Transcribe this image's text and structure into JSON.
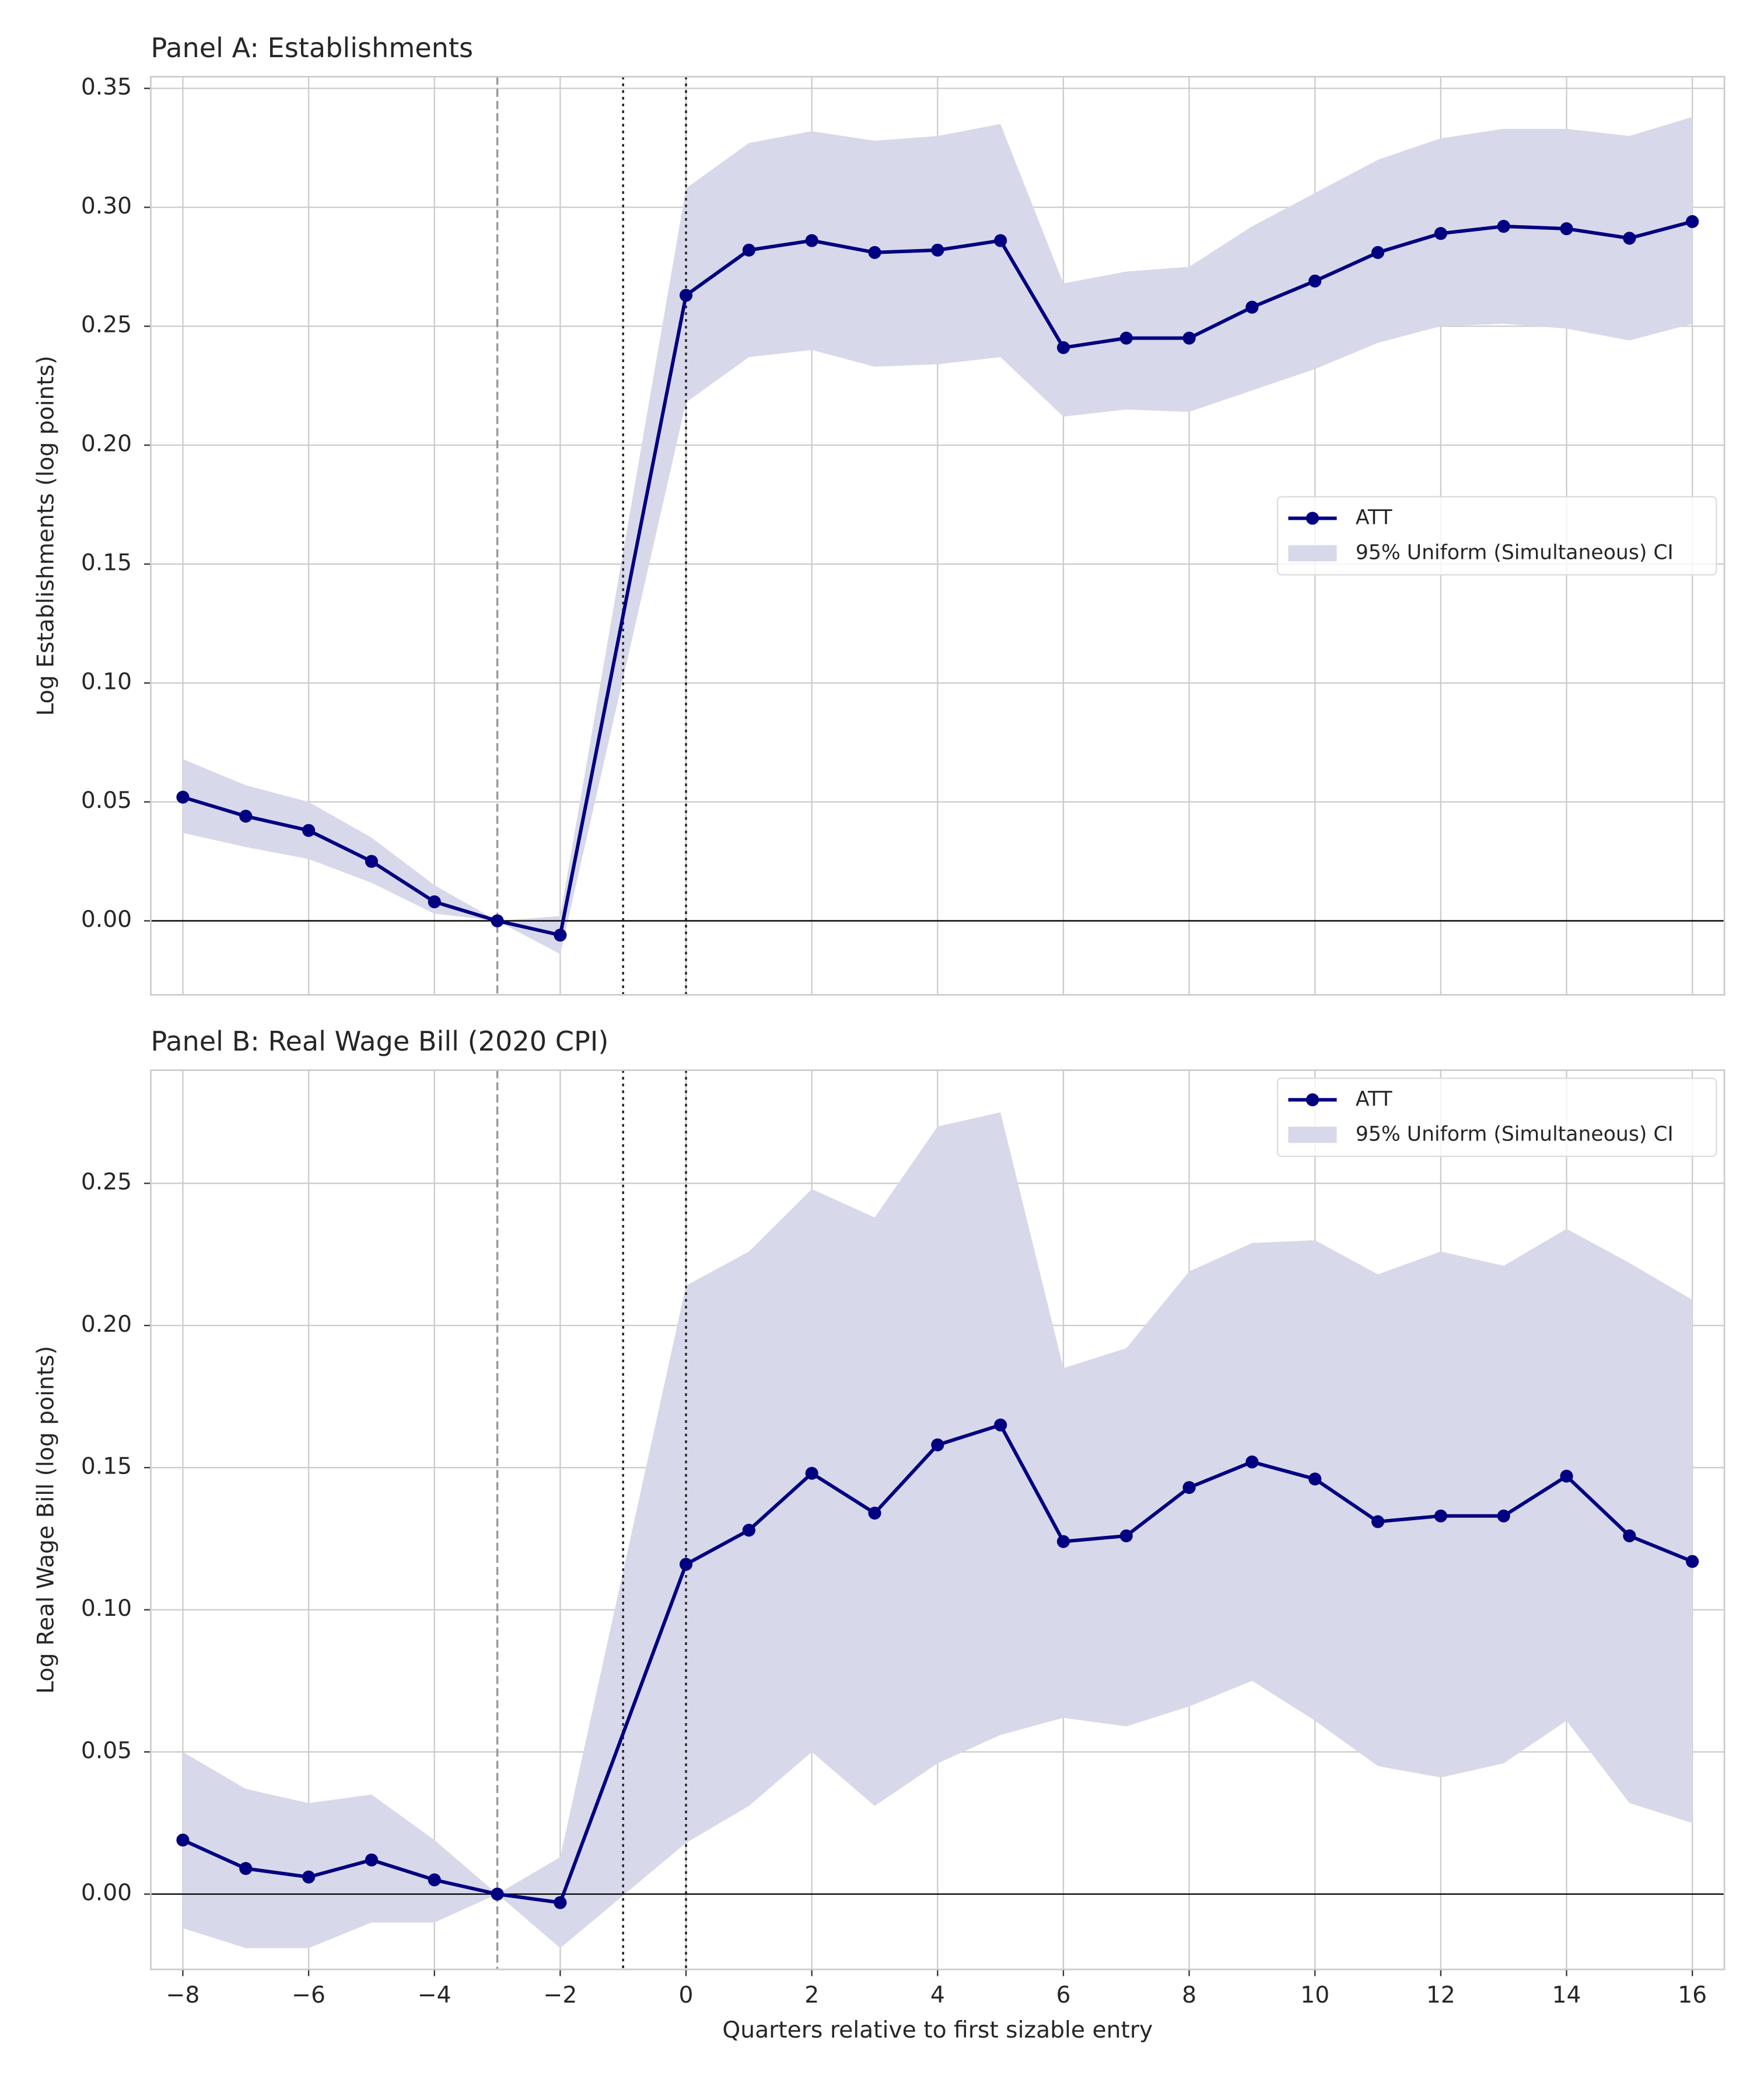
{
  "chart_data": [
    {
      "type": "line",
      "title": "Panel A: Establishments",
      "ylabel": "Log Establishments (log points)",
      "x": [
        -8,
        -7,
        -6,
        -5,
        -4,
        -3,
        -2,
        0,
        1,
        2,
        3,
        4,
        5,
        6,
        7,
        8,
        9,
        10,
        11,
        12,
        13,
        14,
        15,
        16
      ],
      "series": [
        {
          "name": "ATT",
          "color": "#000080",
          "values": [
            0.052,
            0.044,
            0.038,
            0.025,
            0.008,
            0,
            -0.006,
            0.263,
            0.282,
            0.286,
            0.281,
            0.282,
            0.286,
            0.241,
            0.245,
            0.245,
            0.258,
            0.269,
            0.281,
            0.289,
            0.292,
            0.291,
            0.287,
            0.294
          ]
        }
      ],
      "band": {
        "name": "95% Uniform (Simultaneous) CI",
        "color": "#d8d8eb",
        "upper": [
          0.068,
          0.057,
          0.05,
          0.035,
          0.015,
          0,
          0.002,
          0.308,
          0.327,
          0.332,
          0.328,
          0.33,
          0.335,
          0.268,
          0.273,
          0.275,
          0.292,
          0.306,
          0.32,
          0.329,
          0.333,
          0.333,
          0.33,
          0.338
        ],
        "lower": [
          0.037,
          0.031,
          0.026,
          0.016,
          0.003,
          0,
          -0.014,
          0.218,
          0.237,
          0.24,
          0.233,
          0.234,
          0.237,
          0.212,
          0.215,
          0.214,
          0.223,
          0.232,
          0.243,
          0.25,
          0.251,
          0.249,
          0.244,
          0.251
        ]
      },
      "xlim": [
        -8.51,
        16.51
      ],
      "ylim": [
        -0.0311,
        0.3549
      ],
      "xticks": [
        -8,
        -6,
        -4,
        -2,
        0,
        2,
        4,
        6,
        8,
        10,
        12,
        14,
        16
      ],
      "yticks": [
        {
          "value": 0,
          "label": "0.00"
        },
        {
          "value": 0.05,
          "label": "0.05"
        },
        {
          "value": 0.1,
          "label": "0.10"
        },
        {
          "value": 0.15,
          "label": "0.15"
        },
        {
          "value": 0.2,
          "label": "0.20"
        },
        {
          "value": 0.25,
          "label": "0.25"
        },
        {
          "value": 0.3,
          "label": "0.30"
        },
        {
          "value": 0.35,
          "label": "0.35"
        }
      ],
      "vlines": [
        {
          "x": -3,
          "style": "dashed"
        },
        {
          "x": -1,
          "style": "dotted"
        },
        {
          "x": 0,
          "style": "dotted"
        }
      ],
      "hline": 0,
      "grid": true,
      "legend": "center right"
    },
    {
      "type": "line",
      "title": "Panel B: Real Wage Bill (2020 CPI)",
      "ylabel": "Log Real Wage Bill (log points)",
      "xlabel": "Quarters relative to first sizable entry",
      "x": [
        -8,
        -7,
        -6,
        -5,
        -4,
        -3,
        -2,
        0,
        1,
        2,
        3,
        4,
        5,
        6,
        7,
        8,
        9,
        10,
        11,
        12,
        13,
        14,
        15,
        16
      ],
      "series": [
        {
          "name": "ATT",
          "color": "#000080",
          "values": [
            0.019,
            0.009,
            0.006,
            0.012,
            0.005,
            0,
            -0.003,
            0.116,
            0.128,
            0.148,
            0.134,
            0.158,
            0.165,
            0.124,
            0.126,
            0.143,
            0.152,
            0.146,
            0.131,
            0.133,
            0.133,
            0.147,
            0.126,
            0.117
          ]
        }
      ],
      "band": {
        "name": "95% Uniform (Simultaneous) CI",
        "color": "#d8d8eb",
        "upper": [
          0.05,
          0.037,
          0.032,
          0.035,
          0.019,
          0,
          0.013,
          0.214,
          0.226,
          0.248,
          0.238,
          0.27,
          0.275,
          0.185,
          0.192,
          0.219,
          0.229,
          0.23,
          0.218,
          0.226,
          0.221,
          0.234,
          0.222,
          0.209
        ],
        "lower": [
          -0.012,
          -0.019,
          -0.019,
          -0.01,
          -0.01,
          0,
          -0.019,
          0.018,
          0.031,
          0.05,
          0.031,
          0.046,
          0.056,
          0.062,
          0.059,
          0.066,
          0.075,
          0.061,
          0.045,
          0.041,
          0.046,
          0.061,
          0.032,
          0.025
        ]
      },
      "xlim": [
        -8.51,
        16.51
      ],
      "ylim": [
        -0.0265,
        0.2898
      ],
      "xticks": [
        {
          "value": -8,
          "label": "−8"
        },
        {
          "value": -6,
          "label": "−6"
        },
        {
          "value": -4,
          "label": "−4"
        },
        {
          "value": -2,
          "label": "−2"
        },
        0,
        2,
        4,
        6,
        8,
        10,
        12,
        14,
        16
      ],
      "yticks": [
        {
          "value": 0,
          "label": "0.00"
        },
        {
          "value": 0.05,
          "label": "0.05"
        },
        {
          "value": 0.1,
          "label": "0.10"
        },
        {
          "value": 0.15,
          "label": "0.15"
        },
        {
          "value": 0.2,
          "label": "0.20"
        },
        {
          "value": 0.25,
          "label": "0.25"
        }
      ],
      "vlines": [
        {
          "x": -3,
          "style": "dashed"
        },
        {
          "x": -1,
          "style": "dotted"
        },
        {
          "x": 0,
          "style": "dotted"
        }
      ],
      "hline": 0,
      "grid": true,
      "legend": "upper right"
    }
  ]
}
